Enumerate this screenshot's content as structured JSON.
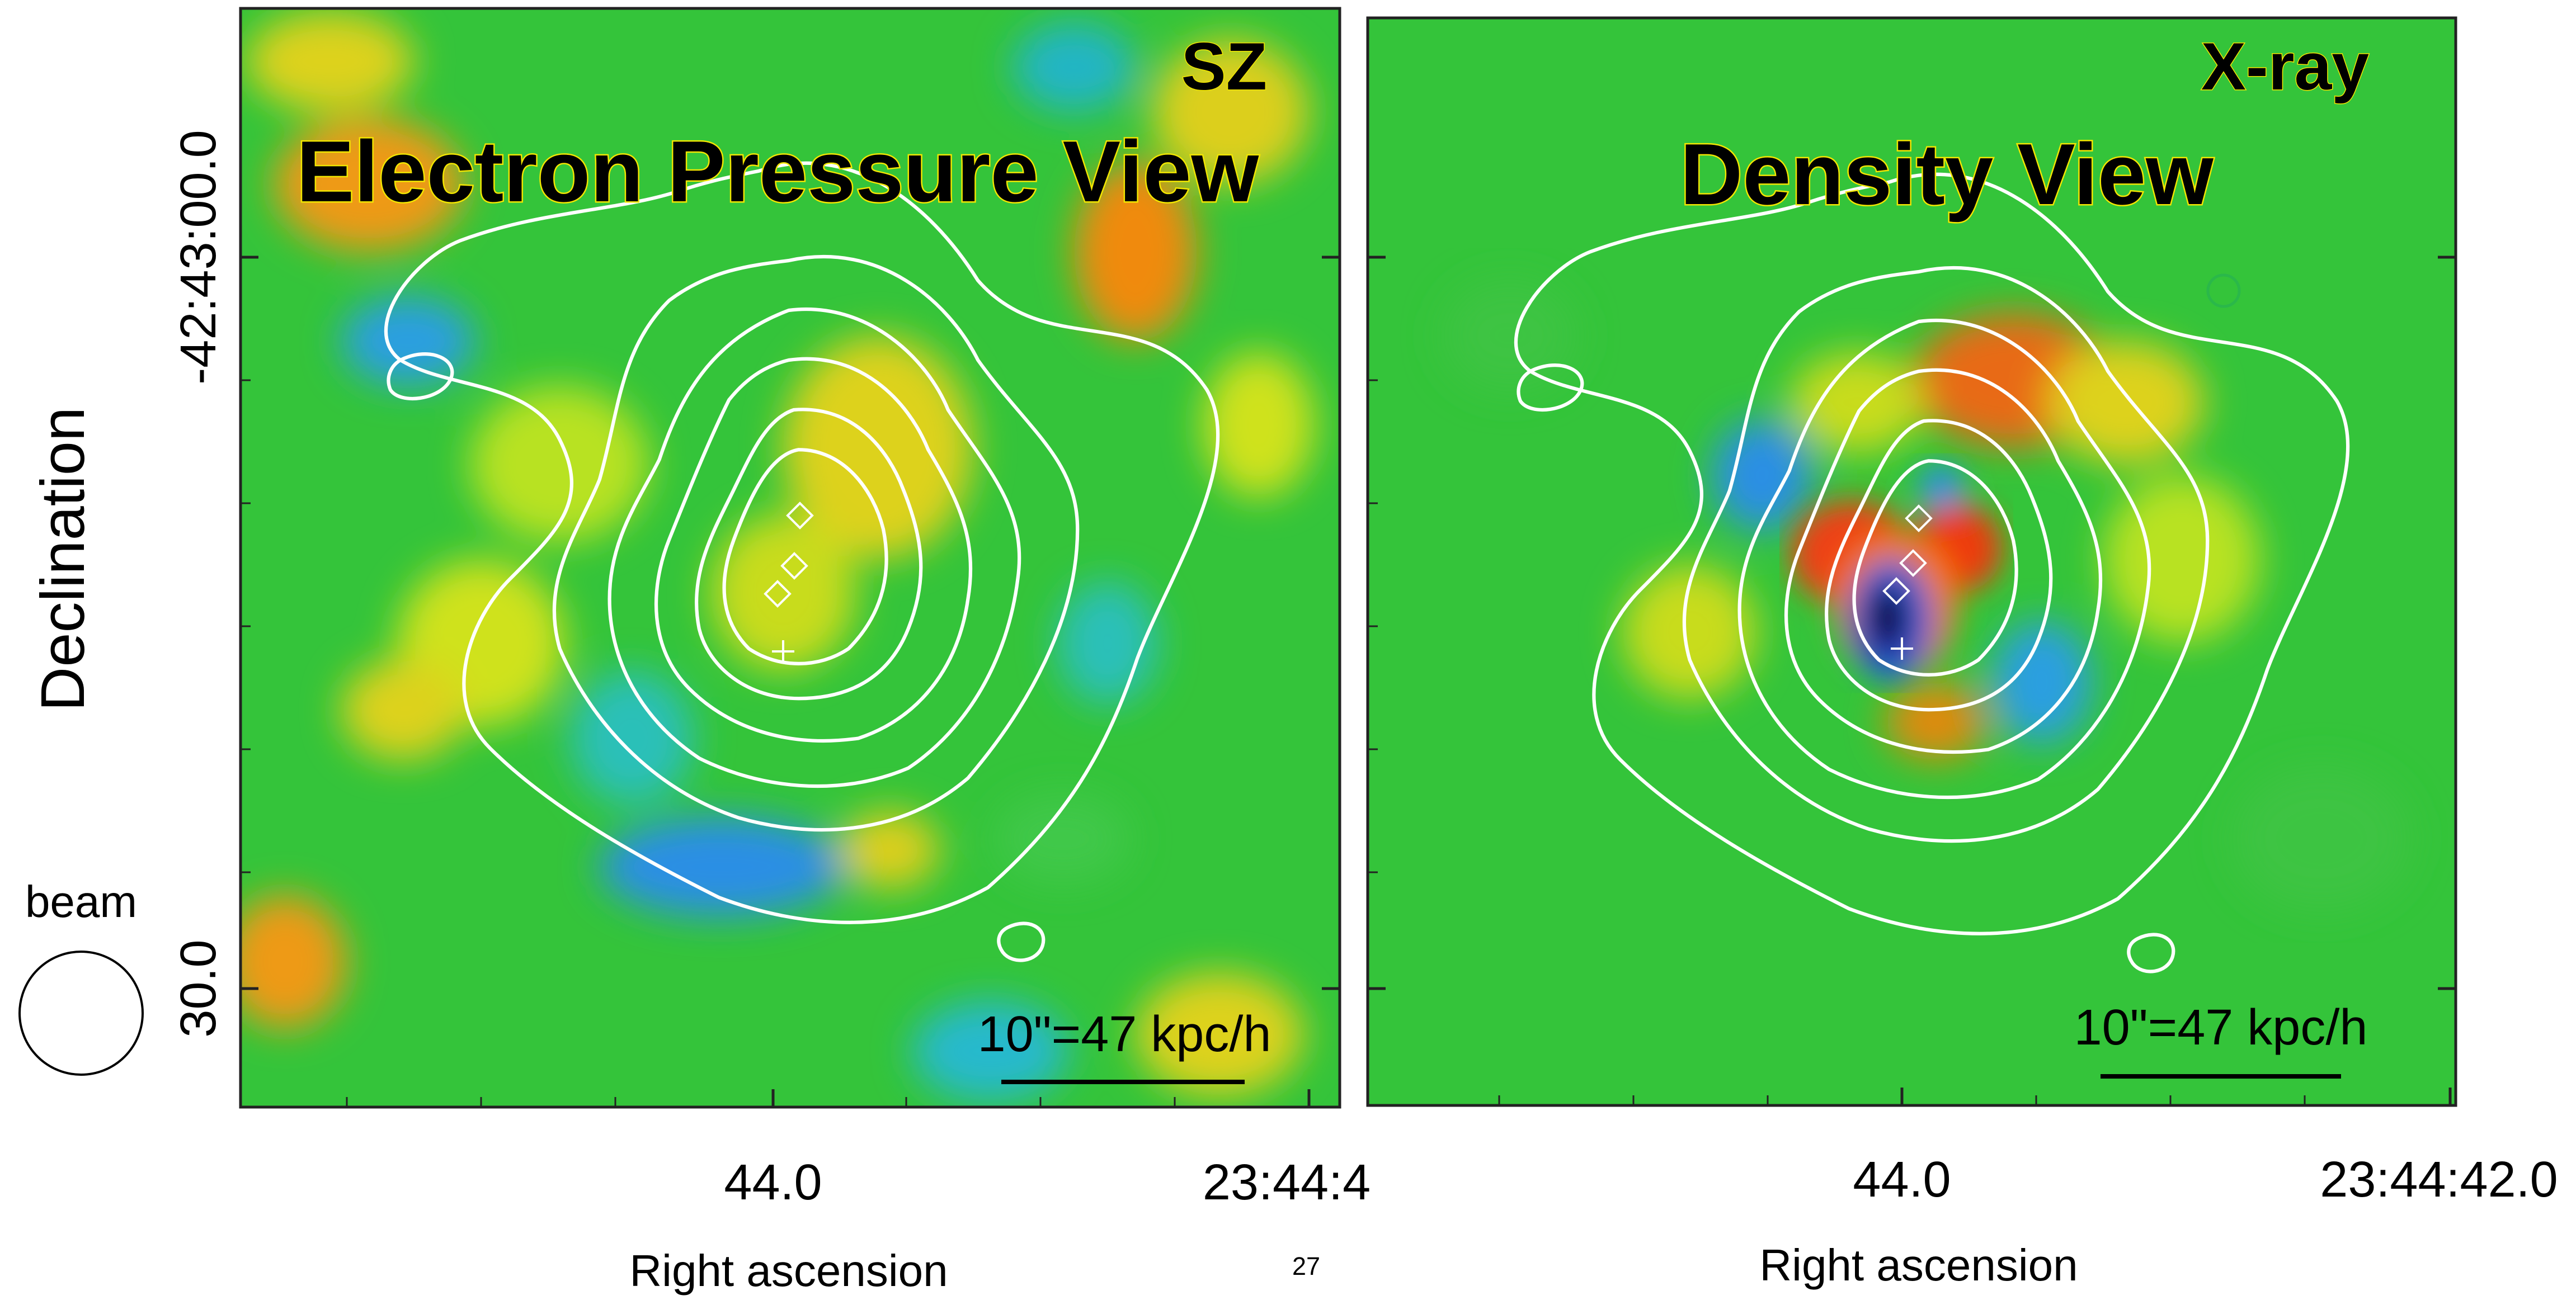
{
  "page_number": "27",
  "axis": {
    "y_title": "Declination",
    "y_ticks": [
      "-42:43:00.0",
      "30.0"
    ],
    "x_title": "Right ascension"
  },
  "beam": {
    "label": "beam"
  },
  "panels": [
    {
      "id": "sz",
      "tag": "SZ",
      "title": "Electron Pressure View",
      "scale_bar": "10\"=47 kpc/h",
      "x_ticks": [
        "44.0",
        "23:44:4"
      ]
    },
    {
      "id": "xray",
      "tag": "X-ray",
      "title": "Density View",
      "scale_bar": "10\"=47 kpc/h",
      "x_ticks": [
        "44.0",
        "23:44:42.0"
      ]
    }
  ],
  "colors": {
    "map_background": "#34c43a",
    "contour": "#ffffff",
    "title_text": "#000000",
    "title_outline": "#f2e600",
    "frame": "#222222"
  }
}
